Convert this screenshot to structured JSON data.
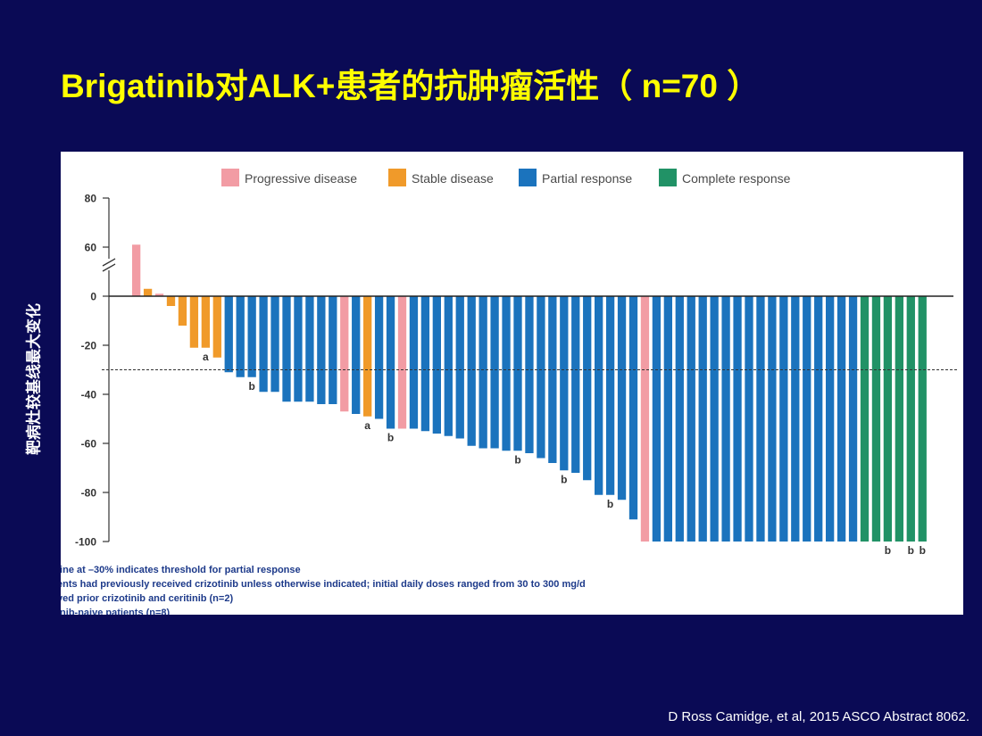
{
  "slide": {
    "title": "Brigatinib对ALK+患者的抗肿瘤活性（ n=70 ）",
    "citation": "D Ross Camidge, et al, 2015 ASCO Abstract  8062."
  },
  "colors": {
    "background": "#0a0a55",
    "title": "#ffff00",
    "progressive": "#f29ca4",
    "stable": "#f09a2a",
    "partial": "#1b73bd",
    "complete": "#219266"
  },
  "chart_data": {
    "type": "bar",
    "title": "",
    "xlabel": "",
    "ylabel": "靶病灶较基线最大变化",
    "ylim": [
      -100,
      80
    ],
    "axis_break": [
      0,
      60
    ],
    "y_ticks": [
      80,
      60,
      0,
      -20,
      -40,
      -60,
      -80,
      -100
    ],
    "threshold": -30,
    "legend_position": "top",
    "grid": false,
    "legend": [
      {
        "key": "progressive",
        "label": "Progressive disease"
      },
      {
        "key": "stable",
        "label": "Stable disease"
      },
      {
        "key": "partial",
        "label": "Partial response"
      },
      {
        "key": "complete",
        "label": "Complete response"
      }
    ],
    "bars": [
      {
        "value": 61,
        "type": "progressive",
        "annotation": ""
      },
      {
        "value": 3,
        "type": "stable",
        "annotation": ""
      },
      {
        "value": 1,
        "type": "progressive",
        "annotation": ""
      },
      {
        "value": -4,
        "type": "stable",
        "annotation": ""
      },
      {
        "value": -12,
        "type": "stable",
        "annotation": ""
      },
      {
        "value": -21,
        "type": "stable",
        "annotation": ""
      },
      {
        "value": -21,
        "type": "stable",
        "annotation": "a"
      },
      {
        "value": -25,
        "type": "stable",
        "annotation": ""
      },
      {
        "value": -31,
        "type": "partial",
        "annotation": ""
      },
      {
        "value": -33,
        "type": "partial",
        "annotation": ""
      },
      {
        "value": -33,
        "type": "partial",
        "annotation": "b"
      },
      {
        "value": -39,
        "type": "partial",
        "annotation": ""
      },
      {
        "value": -39,
        "type": "partial",
        "annotation": ""
      },
      {
        "value": -43,
        "type": "partial",
        "annotation": ""
      },
      {
        "value": -43,
        "type": "partial",
        "annotation": ""
      },
      {
        "value": -43,
        "type": "partial",
        "annotation": ""
      },
      {
        "value": -44,
        "type": "partial",
        "annotation": ""
      },
      {
        "value": -44,
        "type": "partial",
        "annotation": ""
      },
      {
        "value": -47,
        "type": "progressive",
        "annotation": ""
      },
      {
        "value": -48,
        "type": "partial",
        "annotation": ""
      },
      {
        "value": -49,
        "type": "stable",
        "annotation": "a"
      },
      {
        "value": -50,
        "type": "partial",
        "annotation": ""
      },
      {
        "value": -54,
        "type": "partial",
        "annotation": "b"
      },
      {
        "value": -54,
        "type": "progressive",
        "annotation": ""
      },
      {
        "value": -54,
        "type": "partial",
        "annotation": ""
      },
      {
        "value": -55,
        "type": "partial",
        "annotation": ""
      },
      {
        "value": -56,
        "type": "partial",
        "annotation": ""
      },
      {
        "value": -57,
        "type": "partial",
        "annotation": ""
      },
      {
        "value": -58,
        "type": "partial",
        "annotation": ""
      },
      {
        "value": -61,
        "type": "partial",
        "annotation": ""
      },
      {
        "value": -62,
        "type": "partial",
        "annotation": ""
      },
      {
        "value": -62,
        "type": "partial",
        "annotation": ""
      },
      {
        "value": -63,
        "type": "partial",
        "annotation": ""
      },
      {
        "value": -63,
        "type": "partial",
        "annotation": "b"
      },
      {
        "value": -64,
        "type": "partial",
        "annotation": ""
      },
      {
        "value": -66,
        "type": "partial",
        "annotation": ""
      },
      {
        "value": -68,
        "type": "partial",
        "annotation": ""
      },
      {
        "value": -71,
        "type": "partial",
        "annotation": "b"
      },
      {
        "value": -72,
        "type": "partial",
        "annotation": ""
      },
      {
        "value": -75,
        "type": "partial",
        "annotation": ""
      },
      {
        "value": -81,
        "type": "partial",
        "annotation": ""
      },
      {
        "value": -81,
        "type": "partial",
        "annotation": "b"
      },
      {
        "value": -83,
        "type": "partial",
        "annotation": ""
      },
      {
        "value": -91,
        "type": "partial",
        "annotation": ""
      },
      {
        "value": -100,
        "type": "progressive",
        "annotation": ""
      },
      {
        "value": -100,
        "type": "partial",
        "annotation": ""
      },
      {
        "value": -100,
        "type": "partial",
        "annotation": ""
      },
      {
        "value": -100,
        "type": "partial",
        "annotation": ""
      },
      {
        "value": -100,
        "type": "partial",
        "annotation": ""
      },
      {
        "value": -100,
        "type": "partial",
        "annotation": ""
      },
      {
        "value": -100,
        "type": "partial",
        "annotation": ""
      },
      {
        "value": -100,
        "type": "partial",
        "annotation": ""
      },
      {
        "value": -100,
        "type": "partial",
        "annotation": ""
      },
      {
        "value": -100,
        "type": "partial",
        "annotation": ""
      },
      {
        "value": -100,
        "type": "partial",
        "annotation": ""
      },
      {
        "value": -100,
        "type": "partial",
        "annotation": ""
      },
      {
        "value": -100,
        "type": "partial",
        "annotation": ""
      },
      {
        "value": -100,
        "type": "partial",
        "annotation": ""
      },
      {
        "value": -100,
        "type": "partial",
        "annotation": ""
      },
      {
        "value": -100,
        "type": "partial",
        "annotation": ""
      },
      {
        "value": -100,
        "type": "partial",
        "annotation": ""
      },
      {
        "value": -100,
        "type": "partial",
        "annotation": ""
      },
      {
        "value": -100,
        "type": "partial",
        "annotation": ""
      },
      {
        "value": -100,
        "type": "complete",
        "annotation": ""
      },
      {
        "value": -100,
        "type": "complete",
        "annotation": ""
      },
      {
        "value": -100,
        "type": "complete",
        "annotation": "b"
      },
      {
        "value": -100,
        "type": "complete",
        "annotation": ""
      },
      {
        "value": -100,
        "type": "complete",
        "annotation": "b"
      },
      {
        "value": -100,
        "type": "complete",
        "annotation": "b"
      }
    ],
    "footnotes": [
      "line at –30% indicates threshold for partial response",
      "ents had previously received crizotinib unless otherwise indicated; initial daily doses ranged from 30 to 300 mg/d",
      "ved prior crizotinib and ceritinib (n=2)",
      "inib-naive patients (n=8)"
    ]
  }
}
